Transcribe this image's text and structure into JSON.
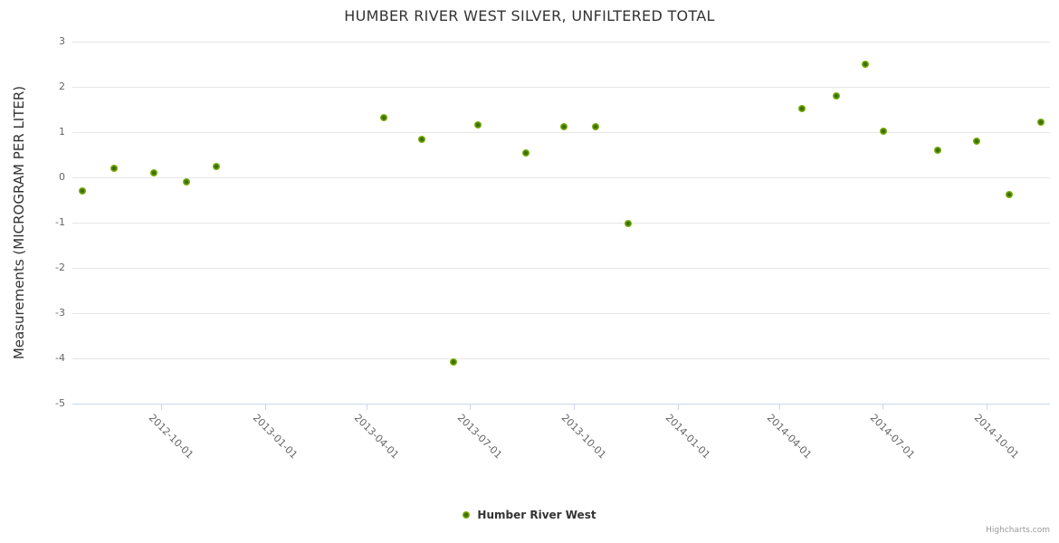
{
  "chart": {
    "credits": "Highcharts.com"
  },
  "legend": {
    "label": "Humber River West"
  },
  "colors": {
    "title": "#333333",
    "axis_label": "#666666",
    "grid_line": "#e6e6e6",
    "axis_line": "#ccd6eb",
    "marker_outer": "#7cb50c",
    "marker_core": "#3d6d04",
    "credits": "#999999"
  },
  "chart_data": {
    "type": "scatter",
    "title": "HUMBER RIVER WEST SILVER, UNFILTERED TOTAL",
    "xlabel": "",
    "ylabel": "Measurements (MICROGRAM PER LITER)",
    "ylim": [
      -5,
      3
    ],
    "y_ticks": [
      3,
      2,
      1,
      0,
      -1,
      -2,
      -3,
      -4,
      -5
    ],
    "x_range": [
      "2012-07-15",
      "2014-11-26"
    ],
    "x_tick_labels": [
      "2012-10-01",
      "2013-01-01",
      "2013-04-01",
      "2013-07-01",
      "2013-10-01",
      "2014-01-01",
      "2014-04-01",
      "2014-07-01",
      "2014-10-01"
    ],
    "grid": "horizontal-only",
    "legend_position": "bottom-center",
    "series": [
      {
        "name": "Humber River West",
        "marker_color": "#7cb50c",
        "marker_core_color": "#3d6d04",
        "points": [
          [
            "2012-07-24",
            -0.3
          ],
          [
            "2012-08-21",
            0.2
          ],
          [
            "2012-09-25",
            0.1
          ],
          [
            "2012-10-24",
            -0.1
          ],
          [
            "2012-11-19",
            0.25
          ],
          [
            "2013-04-16",
            1.32
          ],
          [
            "2013-05-20",
            0.85
          ],
          [
            "2013-06-17",
            -4.07
          ],
          [
            "2013-07-08",
            1.17
          ],
          [
            "2013-08-20",
            0.55
          ],
          [
            "2013-09-22",
            1.12
          ],
          [
            "2013-10-20",
            1.12
          ],
          [
            "2013-11-18",
            -1.02
          ],
          [
            "2014-04-21",
            1.53
          ],
          [
            "2014-05-21",
            1.8
          ],
          [
            "2014-06-16",
            2.5
          ],
          [
            "2014-07-02",
            1.02
          ],
          [
            "2014-08-19",
            0.6
          ],
          [
            "2014-09-22",
            0.8
          ],
          [
            "2014-10-21",
            -0.37
          ],
          [
            "2014-11-18",
            1.22
          ]
        ]
      }
    ]
  }
}
